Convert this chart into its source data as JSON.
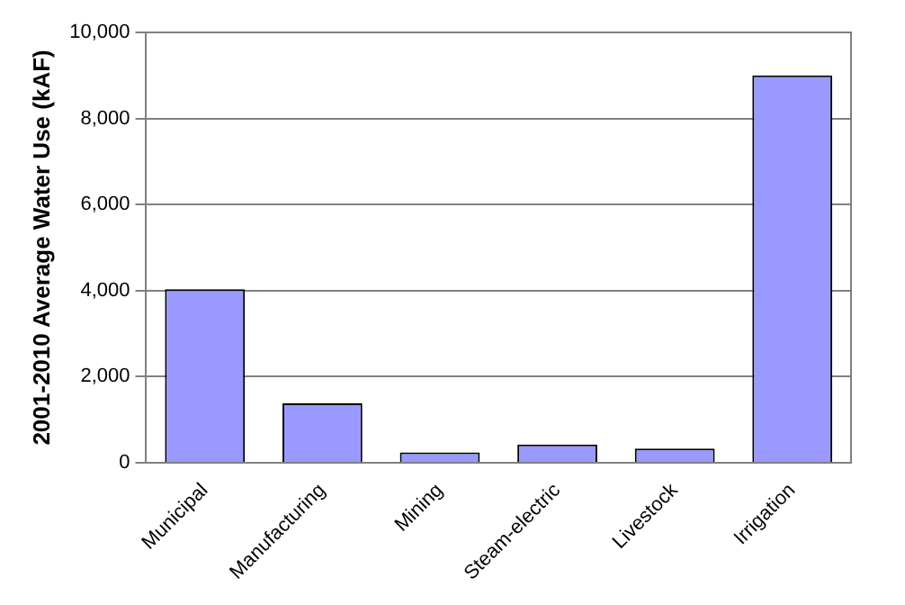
{
  "chart_data": {
    "type": "bar",
    "ylabel": "2001-2010 Average Water Use (kAF)",
    "categories": [
      "Municipal",
      "Manufacturing",
      "Mining",
      "Steam-electric",
      "Livestock",
      "Irrigation"
    ],
    "values": [
      4030,
      1380,
      240,
      420,
      330,
      9000
    ],
    "color": "#9999ff",
    "ylim": [
      0,
      10000
    ],
    "yticks": [
      0,
      {
        "value": 2000,
        "label": "2,000"
      },
      {
        "value": 4000,
        "label": "4,000"
      },
      {
        "value": 6000,
        "label": "6,000"
      },
      {
        "value": 8000,
        "label": "8,000"
      },
      {
        "value": 10000,
        "label": "10,000"
      }
    ],
    "grid": "y",
    "legend": false
  }
}
